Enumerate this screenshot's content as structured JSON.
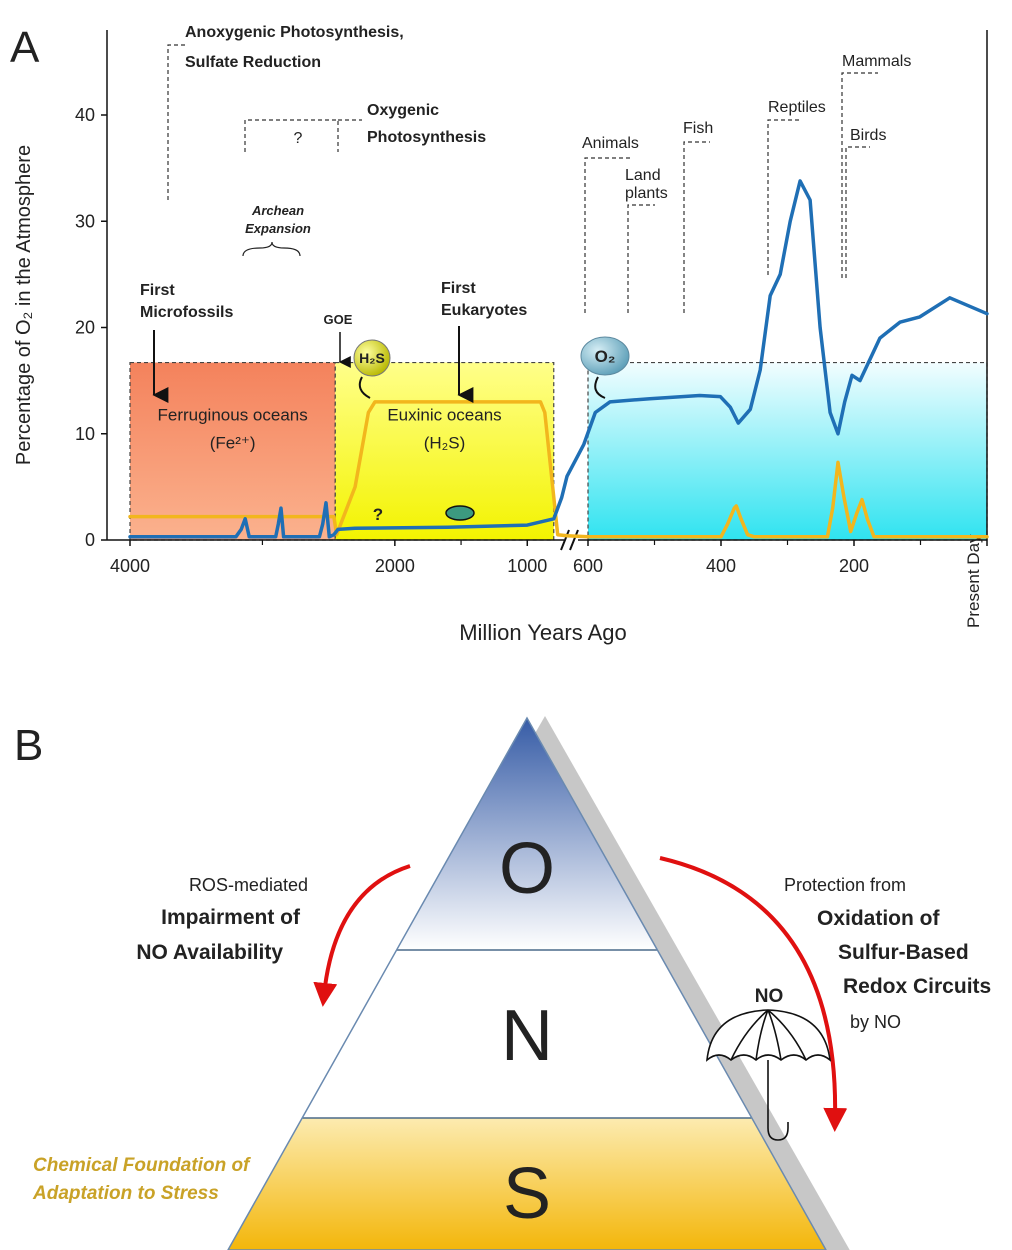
{
  "chart_data": {
    "type": "line",
    "panel_label": "A",
    "y_label": "Percentage of O₂ in the Atmosphere",
    "x_label": "Million Years Ago",
    "xlim": [
      4000,
      0
    ],
    "x_break": [
      700,
      600
    ],
    "ylim": [
      0,
      48
    ],
    "yticks": [
      0,
      10,
      20,
      30,
      40
    ],
    "xticks": [
      4000,
      2000,
      1000,
      600,
      400,
      200,
      {
        "value": 0,
        "label": "Present Day"
      }
    ],
    "xminorticks": [
      3000,
      1500,
      500,
      300,
      100
    ],
    "series": [
      {
        "color": "#1f6fb5",
        "x": [
          4000,
          3200,
          3160,
          3130,
          3100,
          2900,
          2880,
          2860,
          2840,
          2570,
          2545,
          2520,
          2495,
          2460,
          2430,
          2300,
          1600,
          1000,
          800,
          740,
          700,
          620,
          589,
          567,
          507,
          432,
          401,
          386,
          374,
          356,
          341,
          326,
          311,
          296,
          281,
          266,
          251,
          236,
          224,
          214,
          203,
          191,
          161,
          131,
          101,
          56,
          26,
          0
        ],
        "values": [
          0.3,
          0.3,
          1,
          2,
          0.3,
          0.3,
          1.5,
          3,
          0.3,
          0.3,
          1.5,
          3.5,
          0.3,
          0.5,
          1,
          1.1,
          1.2,
          1.4,
          2,
          4,
          6,
          9,
          12,
          13,
          13.3,
          13.6,
          13.5,
          12.5,
          11,
          12.3,
          16,
          23,
          25,
          30,
          33.8,
          32,
          20,
          12,
          10,
          13,
          15.5,
          15,
          19,
          20.5,
          21,
          22.8,
          22,
          21.3
        ]
      },
      {
        "color": "#f2b61d",
        "x": [
          4000,
          2460,
          2440,
          2300,
          2200,
          2151,
          1500,
          900,
          868,
          800,
          770,
          700,
          600,
          400,
          390,
          380,
          377,
          370,
          360,
          350,
          240,
          232,
          224,
          215,
          205,
          196,
          188,
          180,
          170,
          0
        ],
        "values": [
          2.2,
          2.2,
          0.5,
          5,
          12,
          13,
          13,
          13,
          12,
          4,
          0.5,
          0.4,
          0.3,
          0.3,
          1.5,
          3,
          3.2,
          2,
          0.5,
          0.3,
          0.3,
          3,
          7.3,
          4,
          0.8,
          2.5,
          3.8,
          2,
          0.3,
          0.3
        ]
      }
    ],
    "regions": [
      {
        "label": "Ferruginous oceans",
        "sublabel": "(Fe²⁺)",
        "xlim": [
          4000,
          2450
        ],
        "top": 16.7
      },
      {
        "label": "Euxinic oceans",
        "sublabel": "(H₂S)",
        "xlim": [
          2450,
          800
        ],
        "top": 16.7
      },
      {
        "xlim": [
          600,
          0
        ],
        "top": 16.7
      }
    ],
    "annotations": [
      "Anoxygenic Photosynthesis,",
      "Sulfate Reduction",
      "Oxygenic",
      "Photosynthesis",
      "?",
      "Archean",
      "Expansion",
      "First",
      "Microfossils",
      "GOE",
      "First",
      "Eukaryotes",
      "Animals",
      "Land",
      "plants",
      "Fish",
      "Reptiles",
      "Mammals",
      "Birds",
      "H₂S",
      "O₂",
      "?"
    ]
  },
  "panel_b": {
    "label": "B",
    "layers": [
      "O",
      "N",
      "S"
    ],
    "left_text": [
      "ROS-mediated",
      "Impairment of",
      "NO Availability"
    ],
    "right_text": [
      "Protection from",
      "Oxidation of",
      "Sulfur-Based",
      "Redox Circuits",
      "by NO"
    ],
    "umbrella_label": "NO",
    "base_text": [
      "Chemical Foundation of",
      "Adaptation to Stress"
    ]
  }
}
